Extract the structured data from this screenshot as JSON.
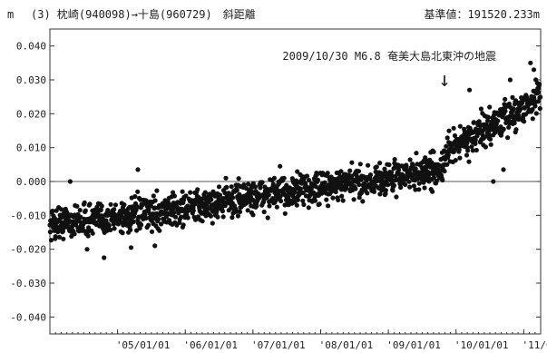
{
  "header": {
    "unit": "m",
    "title": "(3) 枕崎(940098)→十島(960729)　斜距離",
    "reference": "基準値：191520.233m"
  },
  "annotation": {
    "text": "2009/10/30 M6.8 奄美大島北東沖の地震",
    "arrow": "↓",
    "date": 2009.83
  },
  "chart_data": {
    "type": "scatter",
    "title": "(3) 枕崎(940098)→十島(960729)　斜距離",
    "ylabel": "m",
    "reference_value": "基準値：191520.233m",
    "xlim": [
      2004.0,
      2011.25
    ],
    "ylim": [
      -0.045,
      0.045
    ],
    "grid": false,
    "zero_line": true,
    "y_ticks": [
      {
        "value": 0.04,
        "label": "0.040"
      },
      {
        "value": 0.03,
        "label": "0.030"
      },
      {
        "value": 0.02,
        "label": "0.020"
      },
      {
        "value": 0.01,
        "label": "0.010"
      },
      {
        "value": 0.0,
        "label": "0.000"
      },
      {
        "value": -0.01,
        "label": "-0.010"
      },
      {
        "value": -0.02,
        "label": "-0.020"
      },
      {
        "value": -0.03,
        "label": "-0.030"
      },
      {
        "value": -0.04,
        "label": "-0.040"
      }
    ],
    "x_ticks": [
      {
        "value": 2005.0,
        "label": "'05/01/01"
      },
      {
        "value": 2006.0,
        "label": "'06/01/01"
      },
      {
        "value": 2007.0,
        "label": "'07/01/01"
      },
      {
        "value": 2008.0,
        "label": "'08/01/01"
      },
      {
        "value": 2009.0,
        "label": "'09/01/01"
      },
      {
        "value": 2010.0,
        "label": "'10/01/01"
      },
      {
        "value": 2011.0,
        "label": "'11/01/01"
      }
    ],
    "trend": [
      [
        2004.0,
        -0.0125
      ],
      [
        2005.0,
        -0.0105
      ],
      [
        2006.0,
        -0.008
      ],
      [
        2007.0,
        -0.0045
      ],
      [
        2008.0,
        -0.002
      ],
      [
        2008.5,
        -0.0005
      ],
      [
        2009.0,
        0.001
      ],
      [
        2009.83,
        0.004
      ],
      [
        2009.84,
        0.008
      ],
      [
        2010.0,
        0.011
      ],
      [
        2010.5,
        0.016
      ],
      [
        2011.0,
        0.022
      ],
      [
        2011.25,
        0.026
      ]
    ],
    "outliers": [
      [
        2004.3,
        0.0
      ],
      [
        2004.55,
        -0.02
      ],
      [
        2004.8,
        -0.0225
      ],
      [
        2005.2,
        -0.0195
      ],
      [
        2005.3,
        0.0035
      ],
      [
        2005.55,
        -0.019
      ],
      [
        2006.6,
        0.001
      ],
      [
        2007.4,
        0.0045
      ],
      [
        2007.7,
        0.002
      ],
      [
        2008.3,
        0.003
      ],
      [
        2009.5,
        0.004
      ],
      [
        2009.65,
        -0.003
      ],
      [
        2010.2,
        0.027
      ],
      [
        2010.55,
        0.0
      ],
      [
        2010.7,
        0.0035
      ],
      [
        2010.8,
        0.03
      ],
      [
        2011.1,
        0.035
      ],
      [
        2011.15,
        0.033
      ]
    ]
  }
}
